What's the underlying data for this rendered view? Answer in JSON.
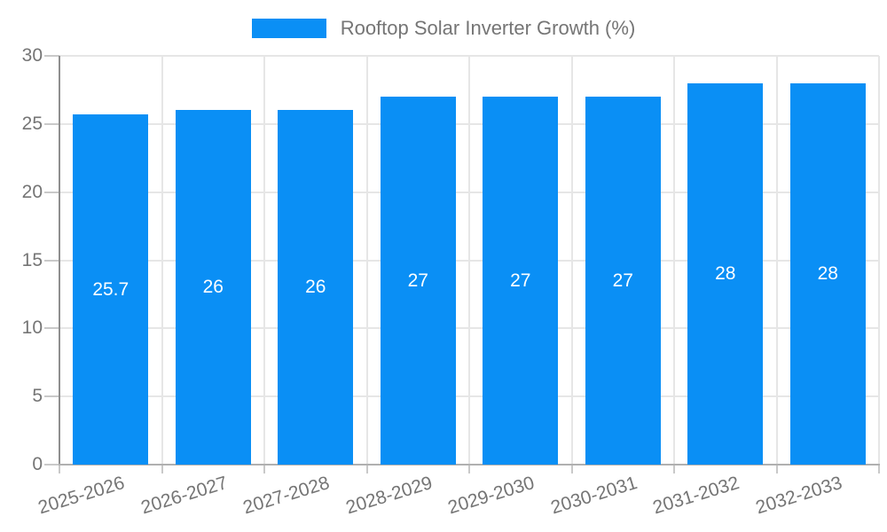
{
  "chart_data": {
    "type": "bar",
    "title": "Rooftop Solar Inverter Growth (%)",
    "categories": [
      "2025-2026",
      "2026-2027",
      "2027-2028",
      "2028-2029",
      "2029-2030",
      "2030-2031",
      "2031-2032",
      "2032-2033"
    ],
    "values": [
      25.7,
      26,
      26,
      27,
      27,
      27,
      28,
      28
    ],
    "bar_labels": [
      "25.7",
      "26",
      "26",
      "27",
      "27",
      "27",
      "28",
      "28"
    ],
    "yticks": [
      0,
      5,
      10,
      15,
      20,
      25,
      30
    ],
    "ylim": [
      0,
      30
    ],
    "xlabel": "",
    "ylabel": "",
    "grid": true,
    "legend_position": "top",
    "colors": {
      "bar": "#0A8FF5",
      "bar_label": "#FFFFFF",
      "tick_label": "#757575",
      "legend_text": "#757575",
      "gridline": "#E6E6E6",
      "y_axis_line": "#8F8F8F",
      "x_axis_line": "#B0B0B0",
      "tick_mark": "#C9C9C9",
      "background": "#FFFFFF"
    }
  }
}
